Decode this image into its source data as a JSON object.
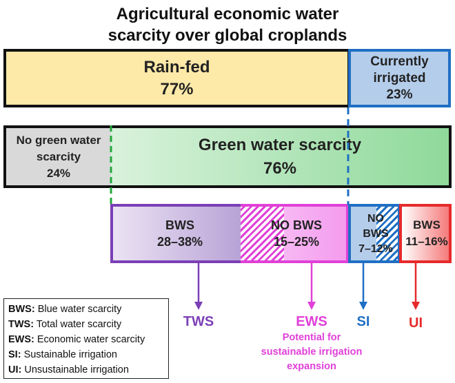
{
  "title": {
    "line1": "Agricultural economic water",
    "line2": "scarcity over global croplands"
  },
  "row1": {
    "rainfed": {
      "label": "Rain-fed",
      "pct": "77%"
    },
    "irrigated": {
      "line1": "Currently",
      "line2": "irrigated",
      "pct": "23%"
    }
  },
  "row2": {
    "no_green": {
      "line1": "No green water",
      "line2": "scarcity",
      "pct": "24%"
    },
    "green": {
      "label": "Green water scarcity",
      "pct": "76%"
    }
  },
  "row3": {
    "bws": {
      "label": "BWS",
      "range": "28–38%"
    },
    "no_bws": {
      "label": "NO BWS",
      "range": "15–25%"
    },
    "si": {
      "line1": "NO",
      "line2": "BWS",
      "range": "7–12%"
    },
    "ui": {
      "label": "BWS",
      "range": "11–16%"
    }
  },
  "outputs": {
    "tws": "TWS",
    "ews": "EWS",
    "ews_note": [
      "Potential for",
      "sustainable irrigation",
      "expansion"
    ],
    "si": "SI",
    "ui": "UI"
  },
  "legend": [
    {
      "abbr": "BWS:",
      "text": "Blue water scarcity"
    },
    {
      "abbr": "TWS:",
      "text": "Total water scarcity"
    },
    {
      "abbr": "EWS:",
      "text": "Economic water scarcity"
    },
    {
      "abbr": "SI:",
      "text": "Sustainable irrigation"
    },
    {
      "abbr": "UI:",
      "text": "Unsustainable irrigation"
    }
  ],
  "colors": {
    "purple": "#7b3fb6",
    "magenta": "#e040d8",
    "blue": "#1f6fc4",
    "red": "#e62a2a",
    "green_dash": "#22a83a"
  }
}
